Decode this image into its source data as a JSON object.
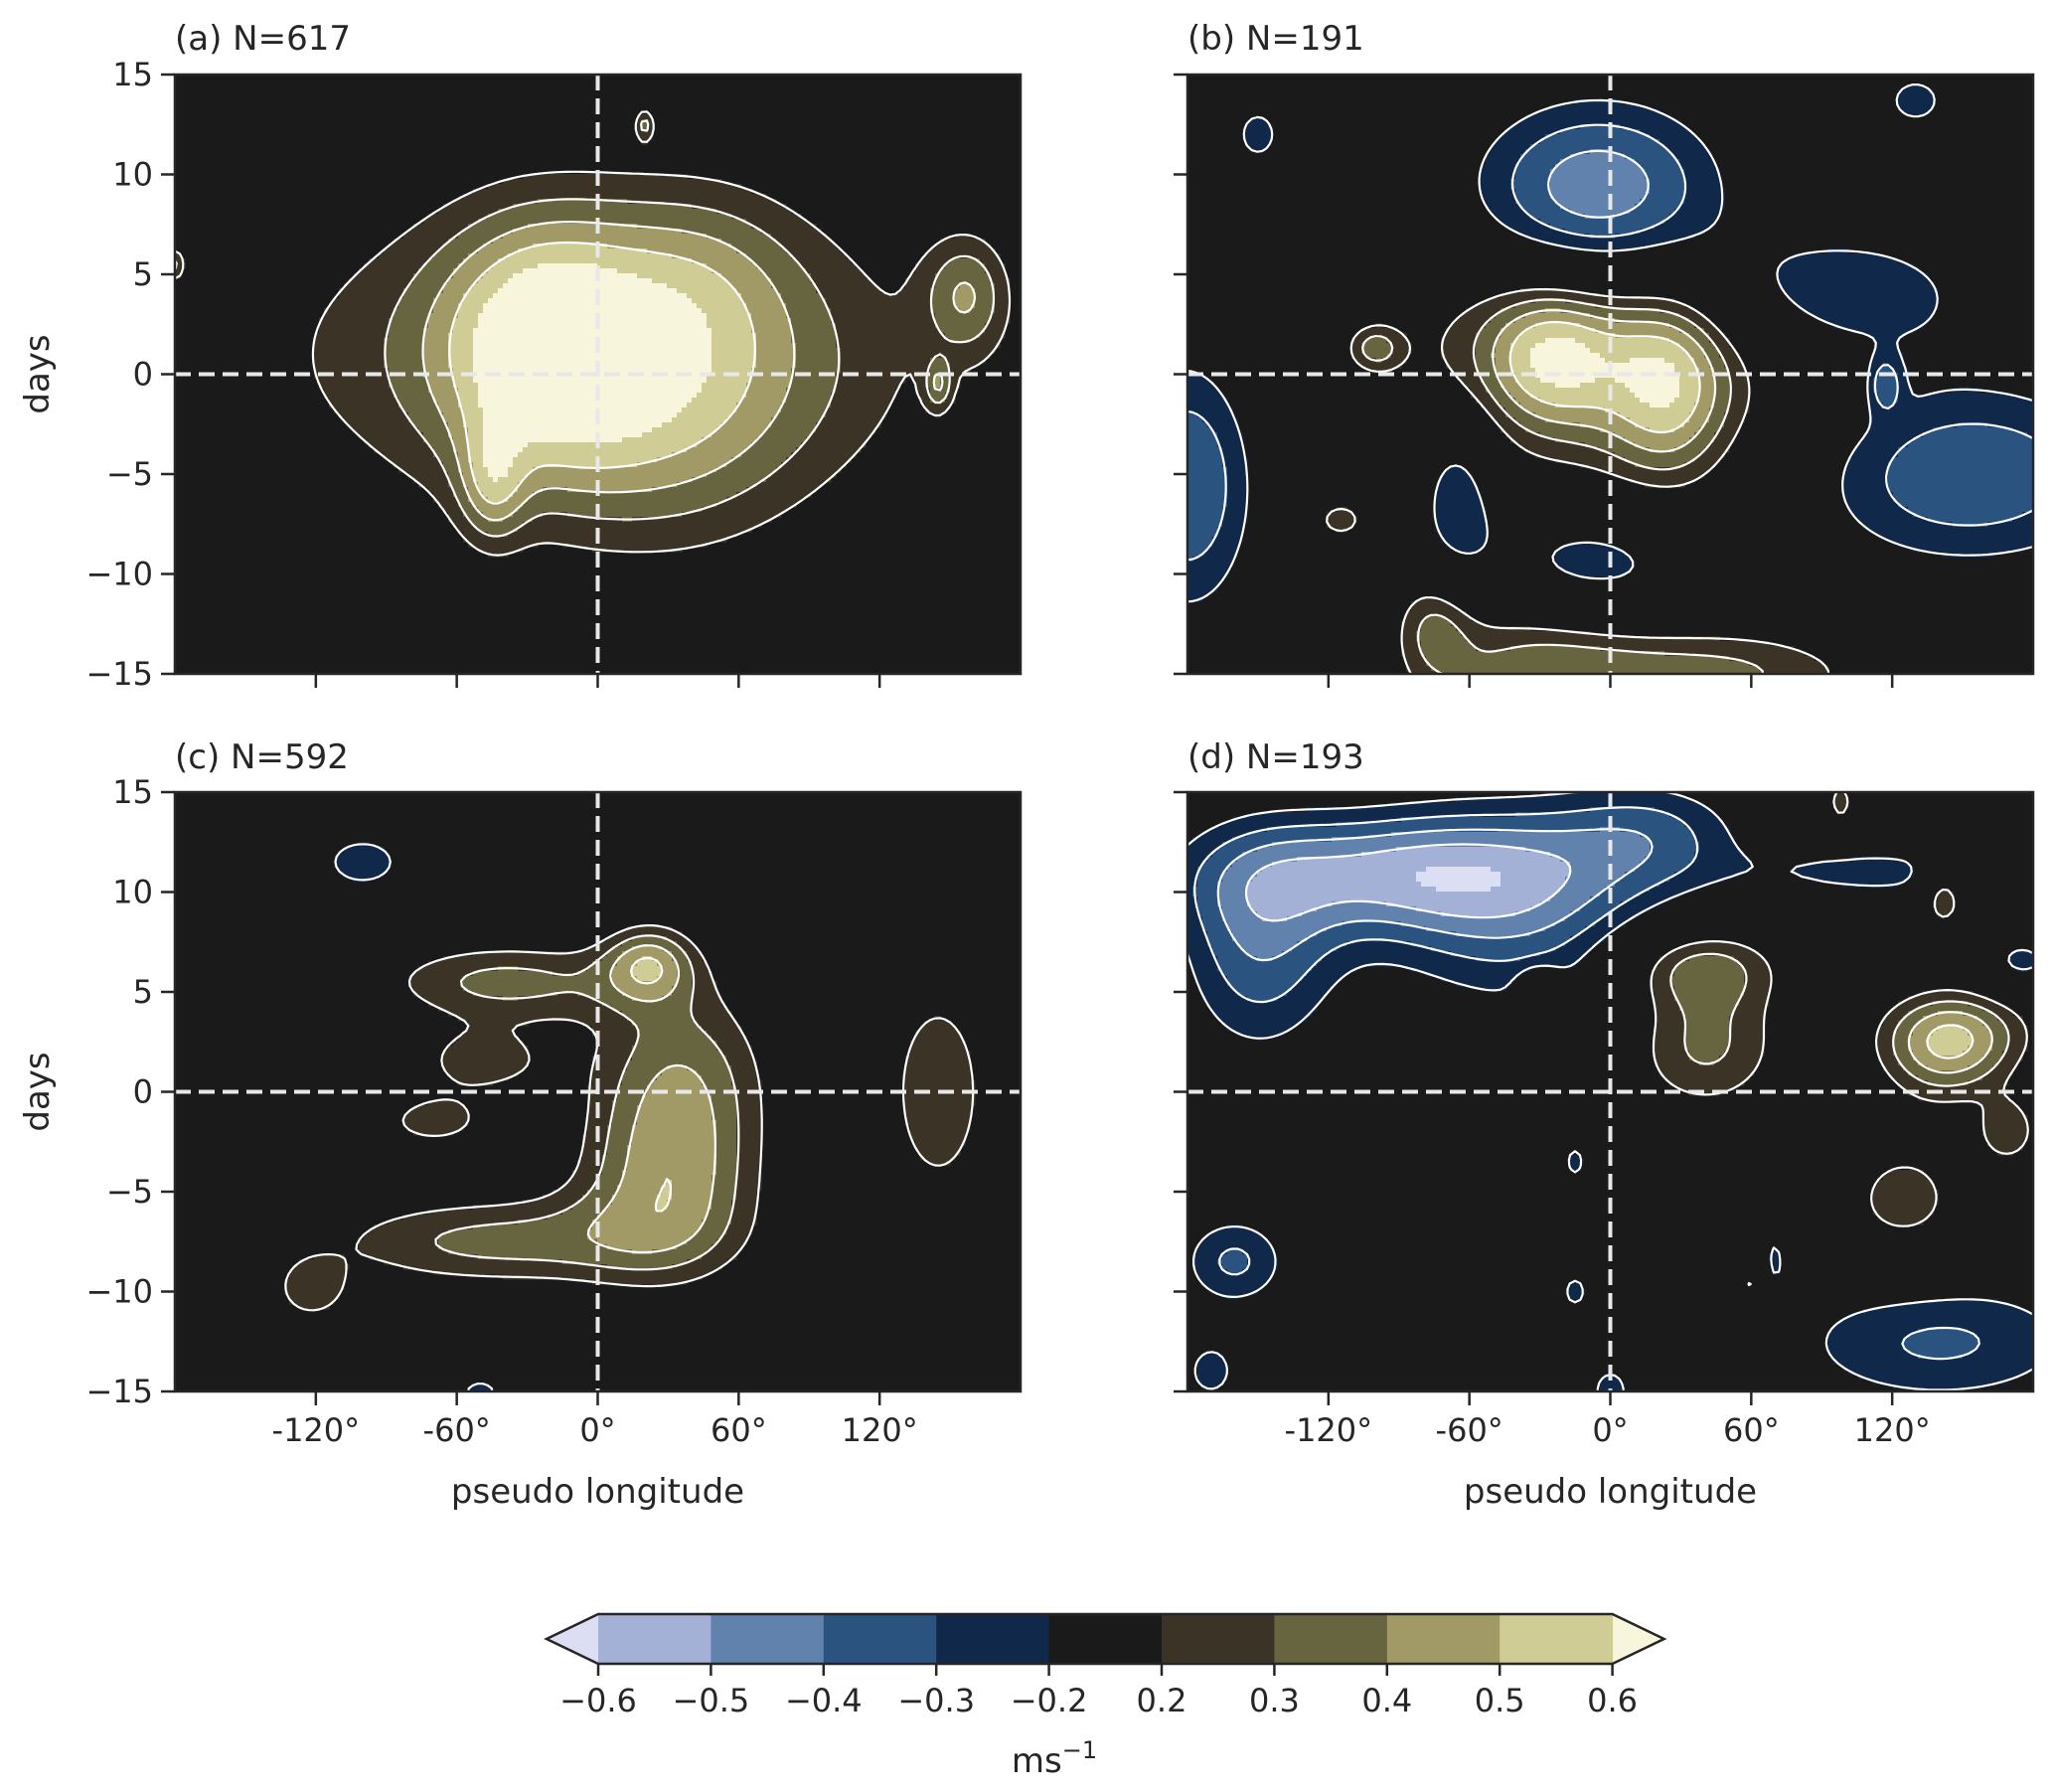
{
  "figure": {
    "xlabel": "pseudo longitude",
    "ylabel": "days",
    "colorbar": {
      "unit_base": "ms",
      "unit_exp": "−1",
      "ticks": [
        "−0.6",
        "−0.5",
        "−0.4",
        "−0.3",
        "−0.2",
        "0.2",
        "0.3",
        "0.4",
        "0.5",
        "0.6"
      ],
      "colors": [
        "#a4b1d6",
        "#6182ad",
        "#2b5380",
        "#10294a",
        "#191a19",
        "#3b3426",
        "#676440",
        "#a19a67",
        "#d0cc96"
      ],
      "under_color": "#dcdff4",
      "over_color": "#f7f5dc"
    },
    "zero_line_color": "#e8e8e8",
    "background_color": "#191a19"
  },
  "chart_data": [
    {
      "type": "contour",
      "panel": "a",
      "title": "(a) N=617",
      "xlim": [
        -180,
        180
      ],
      "ylim": [
        -15,
        15
      ],
      "xticks": [
        -120,
        -60,
        0,
        60,
        120
      ],
      "yticks": [
        15,
        10,
        5,
        0,
        -5,
        -10,
        -15
      ],
      "ytick_labels": [
        "15",
        "10",
        "5",
        "0",
        "−5",
        "−10",
        "−15"
      ],
      "show_xtick_labels": false,
      "show_ylabel": true,
      "show_ytick_labels": true,
      "blobs": [
        {
          "cx": 0,
          "cy": 1,
          "rx": 108,
          "ry": 6,
          "peak": 0.37
        },
        {
          "cx": -25,
          "cy": 1.8,
          "rx": 30,
          "ry": 4.5,
          "peak": 0.36
        },
        {
          "cx": 28,
          "cy": -1.5,
          "rx": 45,
          "ry": 5.5,
          "peak": 0.25
        },
        {
          "cx": 45,
          "cy": 5.5,
          "rx": 30,
          "ry": 3.3,
          "peak": 0.12
        },
        {
          "cx": -45,
          "cy": -5.5,
          "rx": 10,
          "ry": 2.2,
          "peak": 0.27
        },
        {
          "cx": 157,
          "cy": 4,
          "rx": 13,
          "ry": 2.2,
          "peak": 0.3
        },
        {
          "cx": -180,
          "cy": 5.5,
          "rx": 3,
          "ry": 0.6,
          "peak": 0.25
        },
        {
          "cx": 20,
          "cy": 12.5,
          "rx": 3,
          "ry": 0.6,
          "peak": 0.25
        },
        {
          "cx": 145,
          "cy": -0.5,
          "rx": 4,
          "ry": 0.9,
          "peak": 0.25
        }
      ]
    },
    {
      "type": "contour",
      "panel": "b",
      "title": "(b) N=191",
      "xlim": [
        -180,
        180
      ],
      "ylim": [
        -15,
        15
      ],
      "xticks": [
        -120,
        -60,
        0,
        60,
        120
      ],
      "yticks": [
        15,
        10,
        5,
        0,
        -5,
        -10,
        -15
      ],
      "ytick_labels": [
        "15",
        "10",
        "5",
        "0",
        "−5",
        "−10",
        "−15"
      ],
      "show_xtick_labels": false,
      "show_ylabel": false,
      "show_ytick_labels": false,
      "blobs": [
        {
          "cx": -25,
          "cy": 1,
          "rx": 20,
          "ry": 2.5,
          "peak": 0.34
        },
        {
          "cx": 25,
          "cy": -0.5,
          "rx": 18,
          "ry": 3.5,
          "peak": 0.32
        },
        {
          "cx": -20,
          "cy": 1.5,
          "rx": 65,
          "ry": 3.5,
          "peak": 0.22
        },
        {
          "cx": 20,
          "cy": -1.5,
          "rx": 55,
          "ry": 5,
          "peak": 0.2
        },
        {
          "cx": -35,
          "cy": -15,
          "rx": 35,
          "ry": 3.5,
          "peak": 0.3
        },
        {
          "cx": -75,
          "cy": -12.5,
          "rx": 12,
          "ry": 2,
          "peak": 0.25
        },
        {
          "cx": 45,
          "cy": -15,
          "rx": 50,
          "ry": 1.8,
          "peak": 0.32
        },
        {
          "cx": -100,
          "cy": 1.3,
          "rx": 8,
          "ry": 0.8,
          "peak": 0.25
        },
        {
          "cx": -115,
          "cy": -7.3,
          "rx": 9,
          "ry": 0.8,
          "peak": 0.25
        },
        {
          "cx": -5,
          "cy": 9,
          "rx": 40,
          "ry": 3.5,
          "peak": -0.5
        },
        {
          "cx": 95,
          "cy": 4,
          "rx": 45,
          "ry": 2.5,
          "peak": -0.33
        },
        {
          "cx": 150,
          "cy": -5,
          "rx": 55,
          "ry": 3.5,
          "peak": -0.4
        },
        {
          "cx": -180,
          "cy": -5.5,
          "rx": 22,
          "ry": 5,
          "peak": -0.4
        },
        {
          "cx": -65,
          "cy": -6,
          "rx": 12,
          "ry": 3,
          "peak": -0.32
        },
        {
          "cx": -10,
          "cy": -9.5,
          "rx": 35,
          "ry": 2.2,
          "peak": -0.35
        },
        {
          "cx": -150,
          "cy": 12,
          "rx": 9,
          "ry": 1.3,
          "peak": -0.25
        },
        {
          "cx": 130,
          "cy": 13.7,
          "rx": 12,
          "ry": 1.2,
          "peak": -0.25
        },
        {
          "cx": 117,
          "cy": -0.5,
          "rx": 5,
          "ry": 1,
          "peak": -0.25
        }
      ]
    },
    {
      "type": "contour",
      "panel": "c",
      "title": "(c) N=592",
      "xlim": [
        -180,
        180
      ],
      "ylim": [
        -15,
        15
      ],
      "xticks": [
        -120,
        -60,
        0,
        60,
        120
      ],
      "xtick_labels": [
        "-120°",
        "-60°",
        "0°",
        "60°",
        "120°"
      ],
      "yticks": [
        15,
        10,
        5,
        0,
        -5,
        -10,
        -15
      ],
      "ytick_labels": [
        "15",
        "10",
        "5",
        "0",
        "−5",
        "−10",
        "−15"
      ],
      "show_xtick_labels": true,
      "show_ylabel": true,
      "show_ytick_labels": true,
      "blobs": [
        {
          "cx": 35,
          "cy": 1,
          "rx": 28,
          "ry": 3.5,
          "peak": 0.34
        },
        {
          "cx": 30,
          "cy": -5,
          "rx": 28,
          "ry": 3.3,
          "peak": 0.38
        },
        {
          "cx": -45,
          "cy": -7.5,
          "rx": 55,
          "ry": 1.7,
          "peak": 0.33
        },
        {
          "cx": -40,
          "cy": 5.5,
          "rx": 40,
          "ry": 1.5,
          "peak": 0.33
        },
        {
          "cx": 22,
          "cy": 6.5,
          "rx": 14,
          "ry": 1.4,
          "peak": 0.35
        },
        {
          "cx": -50,
          "cy": 1.5,
          "rx": 22,
          "ry": 1.3,
          "peak": 0.25
        },
        {
          "cx": -70,
          "cy": -1.5,
          "rx": 18,
          "ry": 1,
          "peak": 0.25
        },
        {
          "cx": 145,
          "cy": 0,
          "rx": 18,
          "ry": 4.5,
          "peak": 0.28
        },
        {
          "cx": -122,
          "cy": -10,
          "rx": 12,
          "ry": 1.2,
          "peak": 0.25
        },
        {
          "cx": -100,
          "cy": 11.5,
          "rx": 13,
          "ry": 1,
          "peak": -0.3
        },
        {
          "cx": -50,
          "cy": -15,
          "rx": 8,
          "ry": 0.6,
          "peak": -0.25
        }
      ]
    },
    {
      "type": "contour",
      "panel": "d",
      "title": "(d) N=193",
      "xlim": [
        -180,
        180
      ],
      "ylim": [
        -15,
        15
      ],
      "xticks": [
        -120,
        -60,
        0,
        60,
        120
      ],
      "xtick_labels": [
        "-120°",
        "-60°",
        "0°",
        "60°",
        "120°"
      ],
      "yticks": [
        15,
        10,
        5,
        0,
        -5,
        -10,
        -15
      ],
      "ytick_labels": [
        "15",
        "10",
        "5",
        "0",
        "−5",
        "−10",
        "−15"
      ],
      "show_xtick_labels": true,
      "show_ylabel": false,
      "show_ytick_labels": false,
      "blobs": [
        {
          "cx": -95,
          "cy": 11,
          "rx": 60,
          "ry": 2.2,
          "peak": -0.42
        },
        {
          "cx": -40,
          "cy": 9,
          "rx": 45,
          "ry": 4,
          "peak": -0.32
        },
        {
          "cx": -150,
          "cy": 7,
          "rx": 25,
          "ry": 4,
          "peak": -0.35
        },
        {
          "cx": 20,
          "cy": 13,
          "rx": 30,
          "ry": 2,
          "peak": -0.25
        },
        {
          "cx": -160,
          "cy": -8.5,
          "rx": 18,
          "ry": 1.8,
          "peak": -0.32
        },
        {
          "cx": 140,
          "cy": -12.5,
          "rx": 50,
          "ry": 2.5,
          "peak": -0.32
        },
        {
          "cx": -170,
          "cy": -14,
          "rx": 10,
          "ry": 1.3,
          "peak": -0.25
        },
        {
          "cx": 175,
          "cy": 6.5,
          "rx": 12,
          "ry": 1,
          "peak": -0.25
        },
        {
          "cx": 115,
          "cy": 11,
          "rx": 40,
          "ry": 1,
          "peak": -0.25
        },
        {
          "cx": -15,
          "cy": -10,
          "rx": 5,
          "ry": 0.8,
          "peak": -0.25
        },
        {
          "cx": -15,
          "cy": -3.5,
          "rx": 4,
          "ry": 0.8,
          "peak": -0.25
        },
        {
          "cx": 70,
          "cy": -8.5,
          "rx": 3,
          "ry": 1,
          "peak": -0.25
        },
        {
          "cx": 0,
          "cy": -15,
          "rx": 8,
          "ry": 1.2,
          "peak": -0.25
        },
        {
          "cx": 38,
          "cy": 6.3,
          "rx": 25,
          "ry": 1.5,
          "peak": 0.33
        },
        {
          "cx": 40,
          "cy": 2.3,
          "rx": 25,
          "ry": 2.5,
          "peak": 0.33
        },
        {
          "cx": 142,
          "cy": 2,
          "rx": 20,
          "ry": 2,
          "peak": 0.33
        },
        {
          "cx": 142,
          "cy": 10,
          "rx": 7,
          "ry": 1.3,
          "peak": 0.34
        },
        {
          "cx": 125,
          "cy": -5.5,
          "rx": 22,
          "ry": 2.5,
          "peak": 0.25
        },
        {
          "cx": 98,
          "cy": 14.5,
          "rx": 5,
          "ry": 1,
          "peak": 0.25
        },
        {
          "cx": 170,
          "cy": -2,
          "rx": 10,
          "ry": 1.3,
          "peak": 0.25
        },
        {
          "cx": 150,
          "cy": 3,
          "rx": 25,
          "ry": 1.6,
          "peak": 0.25
        },
        {
          "cx": 60,
          "cy": -9.7,
          "rx": 6,
          "ry": 0.9,
          "peak": 0.25
        },
        {
          "cx": -30,
          "cy": 5.3,
          "rx": 6,
          "ry": 0.6,
          "peak": 0.25
        }
      ]
    }
  ]
}
